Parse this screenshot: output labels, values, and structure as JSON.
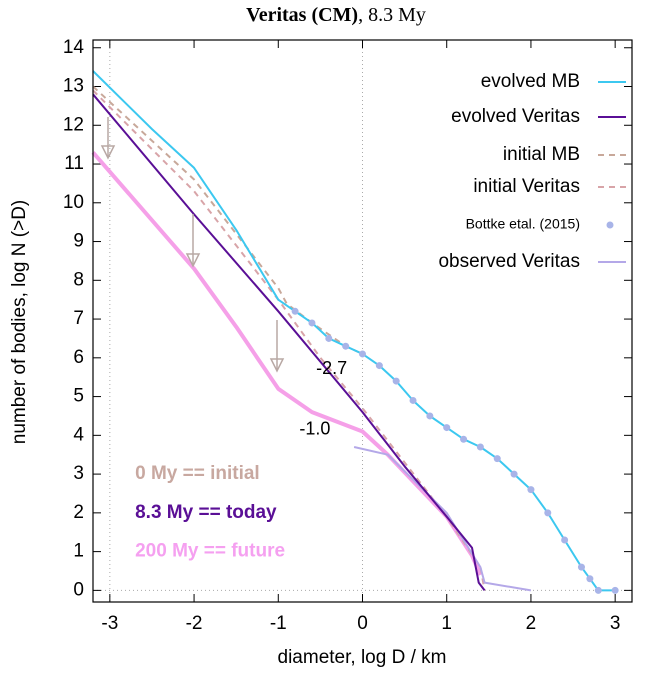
{
  "chart_data": {
    "type": "line",
    "title": {
      "bold": "Veritas (CM)",
      "rest": ", 8.3 My"
    },
    "xlabel": "diameter, log D / km",
    "ylabel": "number of bodies, log N (>D)",
    "xlim": [
      -3.2,
      3.2
    ],
    "ylim": [
      -0.3,
      14.2
    ],
    "xticks": [
      -3,
      -2,
      -1,
      0,
      1,
      2,
      3
    ],
    "yticks": [
      0,
      1,
      2,
      3,
      4,
      5,
      6,
      7,
      8,
      9,
      10,
      11,
      12,
      13,
      14
    ],
    "vlines": [
      -3,
      0
    ],
    "hlines": [
      0
    ],
    "legend": "top-right",
    "series": [
      {
        "name": "evolved MB",
        "color": "#3cc8f0",
        "style": "solid",
        "x": [
          -3.2,
          -2.5,
          -2,
          -1.5,
          -1,
          -0.8,
          -0.6,
          -0.4,
          -0.2,
          0,
          0.2,
          0.4,
          0.6,
          0.8,
          1,
          1.2,
          1.4,
          1.6,
          1.8,
          2,
          2.2,
          2.4,
          2.6,
          2.7,
          2.8,
          3.0
        ],
        "values": [
          13.4,
          11.9,
          10.9,
          9.3,
          7.5,
          7.2,
          6.9,
          6.5,
          6.3,
          6.1,
          5.8,
          5.4,
          4.9,
          4.5,
          4.2,
          3.9,
          3.7,
          3.4,
          3.0,
          2.6,
          2.0,
          1.3,
          0.6,
          0.3,
          0,
          0
        ]
      },
      {
        "name": "evolved Veritas",
        "color": "#5a0f96",
        "style": "solid",
        "x": [
          -3.2,
          -2,
          -1,
          0,
          0.5,
          1,
          1.3,
          1.38,
          1.45
        ],
        "values": [
          12.8,
          9.7,
          7.2,
          4.6,
          3.2,
          1.9,
          1.1,
          0.2,
          0
        ]
      },
      {
        "name": "initial MB",
        "color": "#c8a89a",
        "style": "dashed",
        "x": [
          -3.2,
          -2,
          -1,
          -0.9,
          -0.6,
          -0.2,
          0
        ],
        "values": [
          13.0,
          10.6,
          7.8,
          7.4,
          6.9,
          6.3,
          6.1
        ]
      },
      {
        "name": "initial Veritas",
        "color": "#d8a4a8",
        "style": "dashed",
        "x": [
          -3.2,
          -2,
          -1,
          -0.5,
          0,
          1,
          1.4,
          1.45
        ],
        "values": [
          12.9,
          10.3,
          7.5,
          6.0,
          4.7,
          1.9,
          0.6,
          0
        ]
      },
      {
        "name": "Bottke etal. (2015)",
        "color": "#a8b4e8",
        "style": "dots",
        "x": [
          -0.8,
          -0.6,
          -0.4,
          -0.2,
          0,
          0.2,
          0.4,
          0.6,
          0.8,
          1,
          1.2,
          1.4,
          1.6,
          1.8,
          2,
          2.2,
          2.4,
          2.6,
          2.7,
          2.8,
          3.0
        ],
        "values": [
          7.2,
          6.9,
          6.5,
          6.3,
          6.1,
          5.8,
          5.4,
          4.9,
          4.5,
          4.2,
          3.9,
          3.7,
          3.4,
          3.0,
          2.6,
          2.0,
          1.3,
          0.6,
          0.3,
          0,
          0
        ]
      },
      {
        "name": "observed Veritas",
        "color": "#b4a8e8",
        "style": "solid",
        "x": [
          -0.1,
          0.3,
          1,
          1.4,
          1.45,
          2.0
        ],
        "values": [
          3.7,
          3.5,
          2.0,
          0.6,
          0.2,
          0
        ]
      },
      {
        "color": "#f5a0e8",
        "style": "solid",
        "legend": false,
        "x": [
          -3.2,
          -2,
          -1.5,
          -1,
          -0.6,
          0,
          0.3,
          1,
          1.3,
          1.4
        ],
        "values": [
          11.3,
          8.3,
          6.8,
          5.2,
          4.6,
          4.1,
          3.5,
          1.9,
          0.9,
          0.4
        ]
      }
    ],
    "annotations": [
      {
        "text": "-2.7",
        "color": "#000000"
      },
      {
        "text": "-1.0",
        "color": "#000000"
      },
      {
        "text": "0 My == initial",
        "color": "#c8a8a0"
      },
      {
        "text": "8.3 My == today",
        "color": "#5a0f96"
      },
      {
        "text": "200 My == future",
        "color": "#f5a0f0"
      }
    ]
  }
}
